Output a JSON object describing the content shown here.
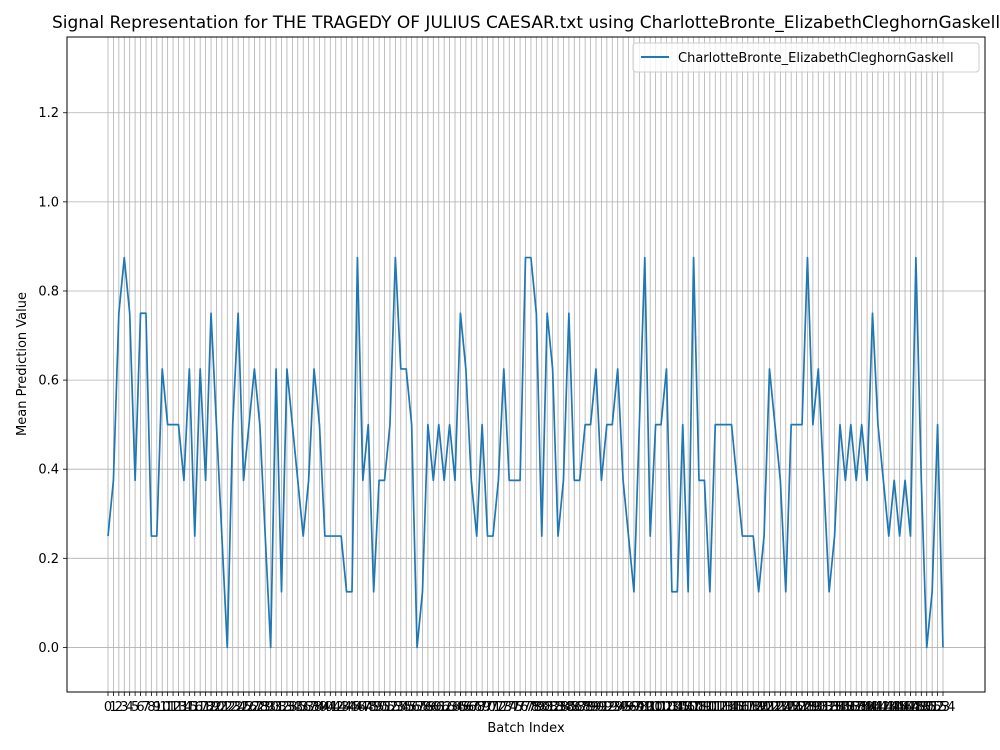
{
  "chart_data": {
    "type": "line",
    "title": "Signal Representation for THE TRAGEDY OF JULIUS CAESAR.txt using CharlotteBronte_ElizabethCleghornGaskell",
    "xlabel": "Batch Index",
    "ylabel": "Mean Prediction Value",
    "ylim": [
      -0.1,
      1.37
    ],
    "yticks": [
      0.0,
      0.2,
      0.4,
      0.6,
      0.8,
      1.0,
      1.2
    ],
    "grid": true,
    "legend_position": "top-right",
    "series": [
      {
        "name": "CharlotteBronte_ElizabethCleghornGaskell",
        "color": "#1f77b4",
        "values": [
          0.25,
          0.375,
          0.75,
          0.875,
          0.75,
          0.375,
          0.75,
          0.75,
          0.25,
          0.25,
          0.625,
          0.5,
          0.5,
          0.5,
          0.375,
          0.625,
          0.25,
          0.625,
          0.375,
          0.75,
          0.5,
          0.25,
          0.0,
          0.5,
          0.75,
          0.375,
          0.5,
          0.625,
          0.5,
          0.25,
          0.0,
          0.625,
          0.125,
          0.625,
          0.5,
          0.375,
          0.25,
          0.375,
          0.625,
          0.5,
          0.25,
          0.25,
          0.25,
          0.25,
          0.125,
          0.125,
          0.875,
          0.375,
          0.5,
          0.125,
          0.375,
          0.375,
          0.5,
          0.875,
          0.625,
          0.625,
          0.5,
          0.0,
          0.125,
          0.5,
          0.375,
          0.5,
          0.375,
          0.5,
          0.375,
          0.75,
          0.625,
          0.375,
          0.25,
          0.5,
          0.25,
          0.25,
          0.375,
          0.625,
          0.375,
          0.375,
          0.375,
          0.875,
          0.875,
          0.75,
          0.25,
          0.75,
          0.625,
          0.25,
          0.375,
          0.75,
          0.375,
          0.375,
          0.5,
          0.5,
          0.625,
          0.375,
          0.5,
          0.5,
          0.625,
          0.375,
          0.25,
          0.125,
          0.5,
          0.875,
          0.25,
          0.5,
          0.5,
          0.625,
          0.125,
          0.125,
          0.5,
          0.125,
          0.875,
          0.375,
          0.375,
          0.125,
          0.5,
          0.5,
          0.5,
          0.5,
          0.375,
          0.25,
          0.25,
          0.25,
          0.125,
          0.25,
          0.625,
          0.5,
          0.375,
          0.125,
          0.5,
          0.5,
          0.5,
          0.875,
          0.5,
          0.625,
          0.375,
          0.125,
          0.25,
          0.5,
          0.375,
          0.5,
          0.375,
          0.5,
          0.375,
          0.75,
          0.5,
          0.375,
          0.25,
          0.375,
          0.25,
          0.375,
          0.25,
          0.875,
          0.375,
          0.0,
          0.125,
          0.5,
          0.0
        ]
      }
    ]
  }
}
